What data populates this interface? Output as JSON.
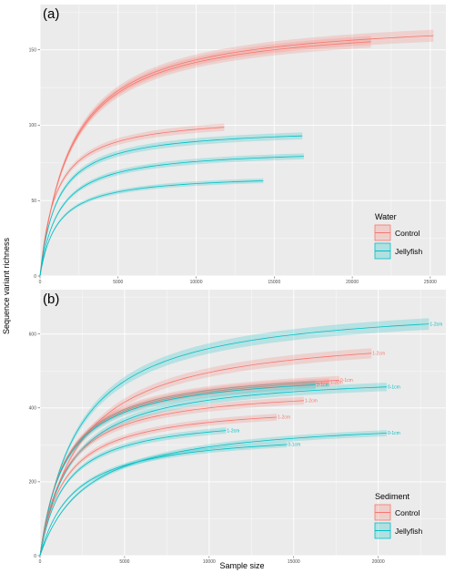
{
  "figure": {
    "ylabel": "Sequence variant richness",
    "xlabel": "Sample size"
  },
  "colors": {
    "control": "#F8766D",
    "jellyfish": "#00BFC4",
    "panel_bg": "#EBEBEB",
    "grid": "#FFFFFF"
  },
  "chart_data": [
    {
      "type": "line",
      "panel_label": "(a)",
      "xlim": [
        0,
        26000
      ],
      "ylim": [
        0,
        180
      ],
      "x_ticks": [
        0,
        5000,
        10000,
        15000,
        20000,
        25000
      ],
      "x_tick_labels": [
        "0",
        "5000",
        "10000",
        "15000",
        "20000",
        "25000"
      ],
      "y_ticks": [
        0,
        50,
        100,
        150
      ],
      "y_tick_labels": [
        "0",
        "50",
        "100",
        "150"
      ],
      "grid": true,
      "legend": {
        "title": "Water",
        "placement": "bottom-right",
        "entries": [
          "Control",
          "Jellyfish"
        ]
      },
      "series": [
        {
          "group": "Control",
          "asymptote": 172,
          "k": 2000,
          "xmax": 25200
        },
        {
          "group": "Control",
          "asymptote": 170,
          "k": 2000,
          "xmax": 21200
        },
        {
          "group": "Control",
          "asymptote": 107,
          "k": 1000,
          "xmax": 11800
        },
        {
          "group": "Jellyfish",
          "asymptote": 99,
          "k": 1100,
          "xmax": 16800
        },
        {
          "group": "Jellyfish",
          "asymptote": 85,
          "k": 1200,
          "xmax": 16900
        },
        {
          "group": "Jellyfish",
          "asymptote": 68,
          "k": 1100,
          "xmax": 14300
        }
      ]
    },
    {
      "type": "line",
      "panel_label": "(b)",
      "xlim": [
        0,
        24000
      ],
      "ylim": [
        0,
        720
      ],
      "x_ticks": [
        0,
        5000,
        10000,
        15000,
        20000
      ],
      "x_tick_labels": [
        "0",
        "5000",
        "10000",
        "15000",
        "20000"
      ],
      "y_ticks": [
        0,
        200,
        400,
        600
      ],
      "y_tick_labels": [
        "0",
        "200",
        "400",
        "600"
      ],
      "grid": true,
      "legend": {
        "title": "Sediment",
        "placement": "bottom-right",
        "entries": [
          "Control",
          "Jellyfish"
        ]
      },
      "series": [
        {
          "group": "Jellyfish",
          "asymptote": 690,
          "k": 2300,
          "xmax": 23000,
          "label": "1-2cm"
        },
        {
          "group": "Control",
          "asymptote": 615,
          "k": 2400,
          "xmax": 19600,
          "label": "1-2cm"
        },
        {
          "group": "Control",
          "asymptote": 515,
          "k": 1500,
          "xmax": 17700,
          "label": "0-1cm"
        },
        {
          "group": "Control",
          "asymptote": 510,
          "k": 1500,
          "xmax": 17100,
          "label": "1-2cm"
        },
        {
          "group": "Jellyfish",
          "asymptote": 505,
          "k": 1500,
          "xmax": 16300,
          "label": "0-1cm"
        },
        {
          "group": "Jellyfish",
          "asymptote": 497,
          "k": 1800,
          "xmax": 20500,
          "label": "0-1cm"
        },
        {
          "group": "Control",
          "asymptote": 460,
          "k": 1500,
          "xmax": 15600,
          "label": "1-2cm"
        },
        {
          "group": "Control",
          "asymptote": 415,
          "k": 1500,
          "xmax": 14000,
          "label": "1-2cm"
        },
        {
          "group": "Jellyfish",
          "asymptote": 385,
          "k": 1500,
          "xmax": 11000,
          "label": "1-2cm"
        },
        {
          "group": "Jellyfish",
          "asymptote": 377,
          "k": 2800,
          "xmax": 20500,
          "label": "0-1cm"
        },
        {
          "group": "Jellyfish",
          "asymptote": 342,
          "k": 2000,
          "xmax": 14600,
          "label": "0-1cm"
        }
      ]
    }
  ]
}
